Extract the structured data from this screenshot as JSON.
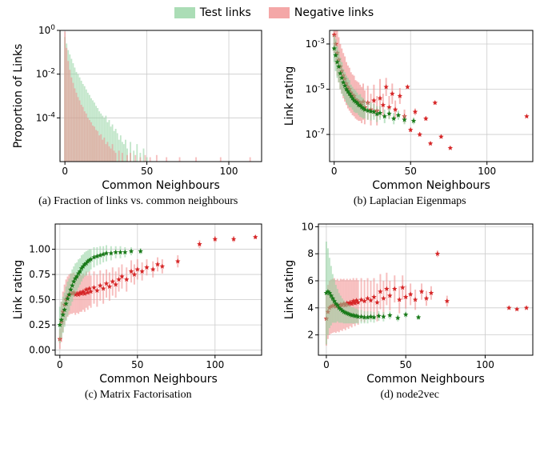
{
  "legend": {
    "items": [
      {
        "label": "Test links",
        "color": "#8fd19e",
        "alpha": 0.75
      },
      {
        "label": "Negative links",
        "color": "#f08a8a",
        "alpha": 0.75
      }
    ],
    "fontsize": 14
  },
  "colors": {
    "test": {
      "fill": "#8fd19e",
      "alpha": 0.55,
      "marker": "#1a7a1a"
    },
    "negative": {
      "fill": "#f08a8a",
      "alpha": 0.55,
      "marker": "#d62728"
    },
    "border": "#000000",
    "grid": "#cccccc",
    "bg": "#ffffff"
  },
  "typography": {
    "axis_label_fontsize": 14,
    "tick_fontsize": 12,
    "caption_fontsize": 14,
    "font_family_axes": "DejaVu Sans, Arial, sans-serif",
    "font_family_caption": "Georgia, Times New Roman, serif"
  },
  "panel_a": {
    "caption": "(a) Fraction of links vs. common neighbours",
    "type": "bar",
    "xlabel": "Common Neighbours",
    "ylabel": "Proportion of Links",
    "xlim": [
      -3,
      120
    ],
    "ylim_log10": [
      -6,
      0
    ],
    "xticks": [
      0,
      50,
      100
    ],
    "yticks_log10": [
      0,
      -2,
      -4
    ],
    "grid": true,
    "test_bars_log10": [
      [
        0,
        -0.3
      ],
      [
        1,
        -0.6
      ],
      [
        2,
        -0.9
      ],
      [
        3,
        -1.1
      ],
      [
        4,
        -1.3
      ],
      [
        5,
        -1.5
      ],
      [
        6,
        -1.7
      ],
      [
        7,
        -1.9
      ],
      [
        8,
        -2.0
      ],
      [
        9,
        -2.15
      ],
      [
        10,
        -2.3
      ],
      [
        11,
        -2.45
      ],
      [
        12,
        -2.55
      ],
      [
        13,
        -2.7
      ],
      [
        14,
        -2.85
      ],
      [
        15,
        -2.95
      ],
      [
        16,
        -3.1
      ],
      [
        17,
        -3.2
      ],
      [
        18,
        -3.3
      ],
      [
        19,
        -3.45
      ],
      [
        20,
        -3.55
      ],
      [
        21,
        -3.7
      ],
      [
        22,
        -3.8
      ],
      [
        23,
        -3.9
      ],
      [
        24,
        -4.0
      ],
      [
        25,
        -3.9
      ],
      [
        26,
        -4.2
      ],
      [
        27,
        -4.1
      ],
      [
        28,
        -4.4
      ],
      [
        29,
        -4.3
      ],
      [
        30,
        -4.6
      ],
      [
        31,
        -4.5
      ],
      [
        32,
        -4.7
      ],
      [
        33,
        -5.0
      ],
      [
        34,
        -4.8
      ],
      [
        35,
        -5.1
      ],
      [
        36,
        -5.2
      ],
      [
        37,
        -5.0
      ],
      [
        38,
        -5.4
      ],
      [
        40,
        -5.1
      ],
      [
        42,
        -5.5
      ],
      [
        44,
        -5.2
      ],
      [
        46,
        -5.6
      ],
      [
        48,
        -5.4
      ],
      [
        50,
        -5.8
      ]
    ],
    "negative_bars_log10": [
      [
        0,
        -0.05
      ],
      [
        1,
        -0.8
      ],
      [
        2,
        -1.4
      ],
      [
        3,
        -1.8
      ],
      [
        4,
        -2.15
      ],
      [
        5,
        -2.4
      ],
      [
        6,
        -2.65
      ],
      [
        7,
        -2.85
      ],
      [
        8,
        -3.05
      ],
      [
        9,
        -3.2
      ],
      [
        10,
        -3.4
      ],
      [
        11,
        -3.5
      ],
      [
        12,
        -3.7
      ],
      [
        13,
        -3.8
      ],
      [
        14,
        -4.0
      ],
      [
        15,
        -4.1
      ],
      [
        16,
        -4.2
      ],
      [
        17,
        -4.35
      ],
      [
        18,
        -4.4
      ],
      [
        19,
        -4.55
      ],
      [
        20,
        -4.6
      ],
      [
        21,
        -4.8
      ],
      [
        22,
        -4.75
      ],
      [
        23,
        -5.0
      ],
      [
        24,
        -4.9
      ],
      [
        25,
        -5.2
      ],
      [
        26,
        -5.1
      ],
      [
        27,
        -5.3
      ],
      [
        28,
        -5.4
      ],
      [
        29,
        -5.2
      ],
      [
        30,
        -5.5
      ],
      [
        31,
        -5.6
      ],
      [
        33,
        -5.5
      ],
      [
        35,
        -5.6
      ],
      [
        38,
        -5.7
      ],
      [
        40,
        -5.6
      ],
      [
        43,
        -5.7
      ],
      [
        46,
        -5.8
      ],
      [
        49,
        -5.7
      ],
      [
        52,
        -5.8
      ],
      [
        56,
        -5.7
      ],
      [
        62,
        -5.8
      ],
      [
        70,
        -5.8
      ],
      [
        80,
        -5.8
      ],
      [
        95,
        -5.8
      ],
      [
        113,
        -5.8
      ]
    ]
  },
  "panel_b": {
    "caption": "(b) Laplacian Eigenmaps",
    "type": "scatter+errorbar",
    "xlabel": "Common Neighbours",
    "ylabel": "Link rating",
    "xlim": [
      -3,
      130
    ],
    "ylim_log10": [
      -8.2,
      -2.4
    ],
    "xticks": [
      0,
      50,
      100
    ],
    "yticks_log10": [
      -3,
      -5,
      -7
    ],
    "grid": true,
    "test_points_log10": [
      [
        0,
        -3.2,
        0.6
      ],
      [
        1,
        -3.5,
        0.7
      ],
      [
        2,
        -3.8,
        0.7
      ],
      [
        3,
        -4.0,
        0.7
      ],
      [
        4,
        -4.3,
        0.7
      ],
      [
        5,
        -4.5,
        0.7
      ],
      [
        6,
        -4.7,
        0.6
      ],
      [
        7,
        -4.85,
        0.6
      ],
      [
        8,
        -5.0,
        0.6
      ],
      [
        9,
        -5.1,
        0.6
      ],
      [
        10,
        -5.2,
        0.6
      ],
      [
        11,
        -5.3,
        0.5
      ],
      [
        12,
        -5.4,
        0.5
      ],
      [
        13,
        -5.5,
        0.5
      ],
      [
        14,
        -5.55,
        0.5
      ],
      [
        15,
        -5.6,
        0.45
      ],
      [
        16,
        -5.7,
        0.45
      ],
      [
        17,
        -5.72,
        0.5
      ],
      [
        18,
        -5.8,
        0.45
      ],
      [
        19,
        -5.85,
        0.45
      ],
      [
        20,
        -5.9,
        0.4
      ],
      [
        22,
        -5.95,
        0.4
      ],
      [
        24,
        -5.98,
        0.4
      ],
      [
        26,
        -6.0,
        0.35
      ],
      [
        28,
        -6.1,
        0.35
      ],
      [
        30,
        -6.05,
        0.3
      ],
      [
        33,
        -6.2,
        0.3
      ],
      [
        36,
        -6.08,
        0.25
      ],
      [
        39,
        -6.3,
        0.25
      ],
      [
        42,
        -6.15,
        0.2
      ],
      [
        46,
        -6.35,
        0.2
      ],
      [
        52,
        -6.4,
        0.15
      ]
    ],
    "negative_points_log10": [
      [
        0,
        -2.6,
        0.8
      ],
      [
        1,
        -3.0,
        0.9
      ],
      [
        2,
        -3.4,
        1.0
      ],
      [
        3,
        -3.7,
        1.0
      ],
      [
        4,
        -4.0,
        1.0
      ],
      [
        5,
        -4.2,
        1.0
      ],
      [
        6,
        -4.4,
        1.0
      ],
      [
        7,
        -4.55,
        1.0
      ],
      [
        8,
        -4.75,
        0.95
      ],
      [
        9,
        -4.9,
        0.95
      ],
      [
        10,
        -5.0,
        0.95
      ],
      [
        11,
        -5.15,
        0.9
      ],
      [
        12,
        -5.25,
        0.9
      ],
      [
        13,
        -5.3,
        0.9
      ],
      [
        14,
        -5.45,
        0.85
      ],
      [
        15,
        -5.5,
        0.85
      ],
      [
        16,
        -5.55,
        0.85
      ],
      [
        17,
        -5.6,
        0.8
      ],
      [
        18,
        -5.7,
        0.8
      ],
      [
        19,
        -5.55,
        0.8
      ],
      [
        20,
        -5.8,
        0.75
      ],
      [
        22,
        -5.6,
        0.75
      ],
      [
        24,
        -5.9,
        0.7
      ],
      [
        26,
        -5.5,
        0.7
      ],
      [
        28,
        -5.95,
        0.65
      ],
      [
        30,
        -5.4,
        0.85
      ],
      [
        32,
        -5.7,
        0.5
      ],
      [
        34,
        -4.9,
        0.4
      ],
      [
        36,
        -5.8,
        0.5
      ],
      [
        38,
        -5.2,
        0.45
      ],
      [
        40,
        -5.9,
        0.4
      ],
      [
        43,
        -5.3,
        0.35
      ],
      [
        46,
        -6.2,
        0.3
      ],
      [
        48,
        -4.9,
        0.08
      ],
      [
        50,
        -6.8,
        0.1
      ],
      [
        53,
        -6.0,
        0.15
      ],
      [
        56,
        -7.0,
        0.1
      ],
      [
        60,
        -6.3,
        0.1
      ],
      [
        63,
        -7.4,
        0.08
      ],
      [
        66,
        -5.6,
        0.08
      ],
      [
        70,
        -7.1,
        0.08
      ],
      [
        76,
        -7.6,
        0.05
      ],
      [
        126,
        -6.2,
        0.02
      ]
    ]
  },
  "panel_c": {
    "caption": "(c) Matrix Factorisation",
    "type": "scatter+errorbar",
    "xlabel": "Common Neighbours",
    "ylabel": "Link rating",
    "xlim": [
      -3,
      130
    ],
    "ylim": [
      -0.05,
      1.25
    ],
    "xticks": [
      0,
      50,
      100
    ],
    "yticks": [
      0.0,
      0.25,
      0.5,
      0.75,
      1.0
    ],
    "ytick_labels": [
      "0.00",
      "0.25",
      "0.50",
      "0.75",
      "1.00"
    ],
    "grid": true,
    "test_points": [
      [
        0,
        0.25,
        0.18
      ],
      [
        1,
        0.3,
        0.18
      ],
      [
        2,
        0.35,
        0.18
      ],
      [
        3,
        0.4,
        0.17
      ],
      [
        4,
        0.46,
        0.17
      ],
      [
        5,
        0.51,
        0.17
      ],
      [
        6,
        0.55,
        0.16
      ],
      [
        7,
        0.6,
        0.16
      ],
      [
        8,
        0.64,
        0.16
      ],
      [
        9,
        0.68,
        0.15
      ],
      [
        10,
        0.71,
        0.15
      ],
      [
        11,
        0.73,
        0.14
      ],
      [
        12,
        0.76,
        0.14
      ],
      [
        13,
        0.78,
        0.13
      ],
      [
        14,
        0.81,
        0.13
      ],
      [
        15,
        0.83,
        0.12
      ],
      [
        16,
        0.85,
        0.12
      ],
      [
        17,
        0.86,
        0.12
      ],
      [
        18,
        0.88,
        0.11
      ],
      [
        19,
        0.89,
        0.11
      ],
      [
        20,
        0.9,
        0.1
      ],
      [
        22,
        0.92,
        0.1
      ],
      [
        24,
        0.93,
        0.09
      ],
      [
        26,
        0.94,
        0.09
      ],
      [
        28,
        0.95,
        0.08
      ],
      [
        30,
        0.96,
        0.08
      ],
      [
        33,
        0.96,
        0.07
      ],
      [
        36,
        0.97,
        0.06
      ],
      [
        39,
        0.97,
        0.06
      ],
      [
        42,
        0.97,
        0.05
      ],
      [
        46,
        0.98,
        0.04
      ],
      [
        52,
        0.98,
        0.03
      ]
    ],
    "negative_points": [
      [
        0,
        0.11,
        0.1
      ],
      [
        1,
        0.28,
        0.2
      ],
      [
        2,
        0.38,
        0.2
      ],
      [
        3,
        0.45,
        0.2
      ],
      [
        4,
        0.5,
        0.2
      ],
      [
        5,
        0.53,
        0.2
      ],
      [
        6,
        0.55,
        0.2
      ],
      [
        7,
        0.56,
        0.2
      ],
      [
        8,
        0.56,
        0.2
      ],
      [
        9,
        0.57,
        0.2
      ],
      [
        10,
        0.55,
        0.2
      ],
      [
        11,
        0.56,
        0.19
      ],
      [
        12,
        0.55,
        0.19
      ],
      [
        13,
        0.57,
        0.19
      ],
      [
        14,
        0.56,
        0.18
      ],
      [
        15,
        0.58,
        0.18
      ],
      [
        16,
        0.56,
        0.18
      ],
      [
        17,
        0.6,
        0.18
      ],
      [
        18,
        0.57,
        0.17
      ],
      [
        19,
        0.61,
        0.17
      ],
      [
        20,
        0.58,
        0.16
      ],
      [
        22,
        0.62,
        0.16
      ],
      [
        24,
        0.59,
        0.16
      ],
      [
        26,
        0.64,
        0.15
      ],
      [
        28,
        0.61,
        0.15
      ],
      [
        30,
        0.66,
        0.14
      ],
      [
        32,
        0.63,
        0.14
      ],
      [
        34,
        0.68,
        0.14
      ],
      [
        36,
        0.65,
        0.13
      ],
      [
        38,
        0.7,
        0.12
      ],
      [
        40,
        0.73,
        0.12
      ],
      [
        43,
        0.7,
        0.12
      ],
      [
        46,
        0.78,
        0.11
      ],
      [
        48,
        0.75,
        0.1
      ],
      [
        50,
        0.8,
        0.1
      ],
      [
        53,
        0.78,
        0.09
      ],
      [
        56,
        0.82,
        0.08
      ],
      [
        60,
        0.8,
        0.08
      ],
      [
        63,
        0.85,
        0.07
      ],
      [
        66,
        0.83,
        0.07
      ],
      [
        76,
        0.88,
        0.06
      ],
      [
        90,
        1.05,
        0.04
      ],
      [
        100,
        1.1,
        0.03
      ],
      [
        112,
        1.1,
        0.03
      ],
      [
        126,
        1.12,
        0.02
      ]
    ]
  },
  "panel_d": {
    "caption": "(d) node2vec",
    "type": "scatter+errorbar",
    "xlabel": "Common Neighbours",
    "ylabel": "Link rating",
    "xlim": [
      -5,
      130
    ],
    "ylim": [
      0.5,
      10.2
    ],
    "xticks": [
      0,
      50,
      100
    ],
    "yticks": [
      2,
      4,
      6,
      8,
      10
    ],
    "grid": true,
    "test_points": [
      [
        0,
        5.1,
        3.8
      ],
      [
        1,
        5.2,
        3.2
      ],
      [
        2,
        5.1,
        2.6
      ],
      [
        3,
        4.9,
        2.2
      ],
      [
        4,
        4.7,
        1.8
      ],
      [
        5,
        4.5,
        1.6
      ],
      [
        6,
        4.3,
        1.4
      ],
      [
        7,
        4.2,
        1.2
      ],
      [
        8,
        4.0,
        1.1
      ],
      [
        9,
        3.9,
        1.0
      ],
      [
        10,
        3.8,
        0.9
      ],
      [
        11,
        3.7,
        0.85
      ],
      [
        12,
        3.65,
        0.8
      ],
      [
        13,
        3.6,
        0.75
      ],
      [
        14,
        3.55,
        0.7
      ],
      [
        15,
        3.5,
        0.65
      ],
      [
        16,
        3.45,
        0.6
      ],
      [
        17,
        3.45,
        0.6
      ],
      [
        18,
        3.4,
        0.55
      ],
      [
        19,
        3.4,
        0.55
      ],
      [
        20,
        3.35,
        0.5
      ],
      [
        22,
        3.35,
        0.5
      ],
      [
        24,
        3.3,
        0.45
      ],
      [
        26,
        3.3,
        0.45
      ],
      [
        28,
        3.35,
        0.4
      ],
      [
        30,
        3.3,
        0.4
      ],
      [
        33,
        3.4,
        0.35
      ],
      [
        36,
        3.35,
        0.35
      ],
      [
        40,
        3.45,
        0.3
      ],
      [
        45,
        3.25,
        0.25
      ],
      [
        50,
        3.5,
        0.22
      ],
      [
        58,
        3.3,
        0.18
      ]
    ],
    "negative_points": [
      [
        0,
        3.2,
        2.0
      ],
      [
        1,
        3.7,
        2.0
      ],
      [
        2,
        4.0,
        2.0
      ],
      [
        3,
        4.1,
        2.0
      ],
      [
        4,
        4.15,
        2.0
      ],
      [
        5,
        4.2,
        2.0
      ],
      [
        6,
        4.1,
        1.95
      ],
      [
        7,
        4.2,
        1.95
      ],
      [
        8,
        4.1,
        1.9
      ],
      [
        9,
        4.25,
        1.9
      ],
      [
        10,
        4.2,
        1.9
      ],
      [
        11,
        4.3,
        1.85
      ],
      [
        12,
        4.2,
        1.85
      ],
      [
        13,
        4.35,
        1.8
      ],
      [
        14,
        4.25,
        1.8
      ],
      [
        15,
        4.4,
        1.75
      ],
      [
        16,
        4.3,
        1.75
      ],
      [
        17,
        4.5,
        1.7
      ],
      [
        18,
        4.35,
        1.7
      ],
      [
        19,
        4.55,
        1.65
      ],
      [
        20,
        4.4,
        1.65
      ],
      [
        22,
        4.6,
        1.6
      ],
      [
        24,
        4.5,
        1.55
      ],
      [
        26,
        4.7,
        1.5
      ],
      [
        28,
        4.55,
        1.45
      ],
      [
        30,
        4.8,
        1.4
      ],
      [
        32,
        4.4,
        1.4
      ],
      [
        34,
        5.2,
        1.3
      ],
      [
        36,
        4.7,
        1.3
      ],
      [
        38,
        5.4,
        1.2
      ],
      [
        40,
        4.9,
        1.1
      ],
      [
        43,
        5.4,
        1.0
      ],
      [
        46,
        4.6,
        1.0
      ],
      [
        48,
        5.5,
        0.9
      ],
      [
        50,
        4.8,
        0.85
      ],
      [
        53,
        5.0,
        0.8
      ],
      [
        56,
        4.6,
        0.75
      ],
      [
        60,
        5.2,
        0.6
      ],
      [
        63,
        4.7,
        0.55
      ],
      [
        66,
        5.1,
        0.5
      ],
      [
        70,
        8.0,
        0.25
      ],
      [
        76,
        4.5,
        0.4
      ],
      [
        115,
        4.0,
        0.1
      ],
      [
        120,
        3.9,
        0.1
      ],
      [
        126,
        4.0,
        0.1
      ]
    ]
  }
}
